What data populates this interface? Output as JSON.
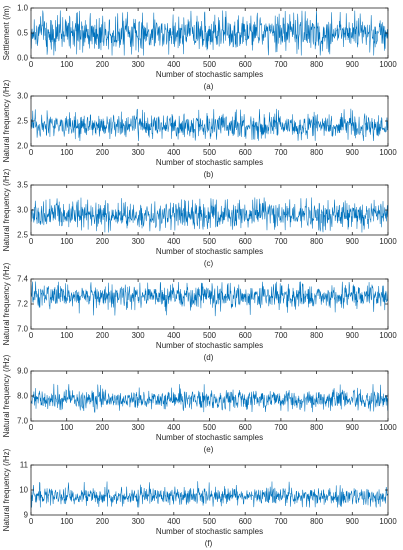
{
  "figure": {
    "line_color": "#0072BD",
    "axis_color": "#262626"
  },
  "chart_data": [
    {
      "type": "line",
      "panel_label": "(a)",
      "xlabel": "Number of stochastic samples",
      "ylabel": "Settlement (/m)",
      "xlim": [
        0,
        1000
      ],
      "ylim": [
        0,
        1
      ],
      "xticks": [
        0,
        100,
        200,
        300,
        400,
        500,
        600,
        700,
        800,
        900,
        1000
      ],
      "yticks": [
        0,
        0.5,
        1
      ],
      "yticklabels": [
        "0.0",
        "0.5",
        "1.0"
      ],
      "series_summary": {
        "n_samples": 1000,
        "approx_mean": 0.5,
        "approx_min": 0.05,
        "approx_max": 0.95
      }
    },
    {
      "type": "line",
      "panel_label": "(b)",
      "xlabel": "Number of stochastic samples",
      "ylabel": "Natural frequency (/Hz)",
      "xlim": [
        0,
        1000
      ],
      "ylim": [
        2.0,
        3.0
      ],
      "xticks": [
        0,
        100,
        200,
        300,
        400,
        500,
        600,
        700,
        800,
        900,
        1000
      ],
      "yticks": [
        2.0,
        2.5,
        3.0
      ],
      "yticklabels": [
        "2.0",
        "2.5",
        "3.0"
      ],
      "series_summary": {
        "n_samples": 1000,
        "approx_mean": 2.4,
        "approx_min": 2.1,
        "approx_max": 2.75
      }
    },
    {
      "type": "line",
      "panel_label": "(c)",
      "xlabel": "Number of stochastic samples",
      "ylabel": "Natural frequency (/Hz)",
      "xlim": [
        0,
        1000
      ],
      "ylim": [
        2.5,
        3.5
      ],
      "xticks": [
        0,
        100,
        200,
        300,
        400,
        500,
        600,
        700,
        800,
        900,
        1000
      ],
      "yticks": [
        2.5,
        3.0,
        3.5
      ],
      "yticklabels": [
        "2.5",
        "3.0",
        "3.5"
      ],
      "series_summary": {
        "n_samples": 1000,
        "approx_mean": 2.9,
        "approx_min": 2.55,
        "approx_max": 3.25
      }
    },
    {
      "type": "line",
      "panel_label": "(d)",
      "xlabel": "Number of stochastic samples",
      "ylabel": "Natural frequency (/Hz)",
      "xlim": [
        0,
        1000
      ],
      "ylim": [
        7.0,
        7.4
      ],
      "xticks": [
        0,
        100,
        200,
        300,
        400,
        500,
        600,
        700,
        800,
        900,
        1000
      ],
      "yticks": [
        7.0,
        7.2,
        7.4
      ],
      "yticklabels": [
        "7.0",
        "7.2",
        "7.4"
      ],
      "series_summary": {
        "n_samples": 1000,
        "approx_mean": 7.26,
        "approx_min": 7.1,
        "approx_max": 7.38
      }
    },
    {
      "type": "line",
      "panel_label": "(e)",
      "xlabel": "Number of stochastic samples",
      "ylabel": "Natural frequency (/Hz)",
      "xlim": [
        0,
        1000
      ],
      "ylim": [
        7.0,
        9.0
      ],
      "xticks": [
        0,
        100,
        200,
        300,
        400,
        500,
        600,
        700,
        800,
        900,
        1000
      ],
      "yticks": [
        7.0,
        8.0,
        9.0
      ],
      "yticklabels": [
        "7.0",
        "8.0",
        "9.0"
      ],
      "series_summary": {
        "n_samples": 1000,
        "approx_mean": 7.85,
        "approx_min": 7.35,
        "approx_max": 8.5
      }
    },
    {
      "type": "line",
      "panel_label": "(f)",
      "xlabel": "Number of stochastic samples",
      "ylabel": "Natural frequency (/Hz)",
      "xlim": [
        0,
        1000
      ],
      "ylim": [
        9,
        11
      ],
      "xticks": [
        0,
        100,
        200,
        300,
        400,
        500,
        600,
        700,
        800,
        900,
        1000
      ],
      "yticks": [
        9,
        10,
        11
      ],
      "yticklabels": [
        "9",
        "10",
        "11"
      ],
      "series_summary": {
        "n_samples": 1000,
        "approx_mean": 9.75,
        "approx_min": 9.3,
        "approx_max": 10.35
      }
    }
  ]
}
